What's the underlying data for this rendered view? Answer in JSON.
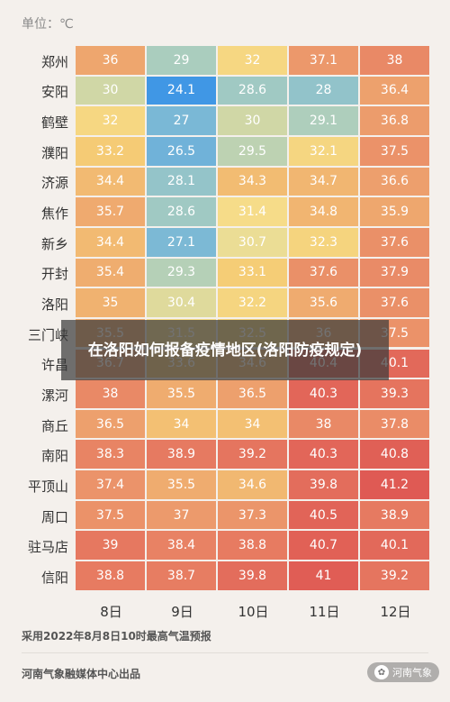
{
  "unit_label": "单位：℃",
  "overlay_title": "在洛阳如何报备疫情地区(洛阳防疫规定)",
  "footer": {
    "source": "采用2022年8月8日10时最高气温预报",
    "org": "河南气象融媒体中心出品",
    "watermark": "河南气象"
  },
  "chart_data": {
    "type": "heatmap",
    "title": "",
    "unit": "单位：℃",
    "x": [
      "8日",
      "9日",
      "10日",
      "11日",
      "12日"
    ],
    "y": [
      "郑州",
      "安阳",
      "鹤壁",
      "濮阳",
      "济源",
      "焦作",
      "新乡",
      "开封",
      "洛阳",
      "三门峡",
      "许昌",
      "漯河",
      "商丘",
      "南阳",
      "平顶山",
      "周口",
      "驻马店",
      "信阳"
    ],
    "values": [
      [
        36,
        29,
        32,
        37.1,
        38
      ],
      [
        30,
        24.1,
        28.6,
        28,
        36.4
      ],
      [
        32,
        27,
        30,
        29.1,
        36.8
      ],
      [
        33.2,
        26.5,
        29.5,
        32.1,
        37.5
      ],
      [
        34.4,
        28.1,
        34.3,
        34.7,
        36.6
      ],
      [
        35.7,
        28.6,
        31.4,
        34.8,
        35.9
      ],
      [
        34.4,
        27.1,
        30.7,
        32.3,
        37.6
      ],
      [
        35.4,
        29.3,
        33.1,
        37.6,
        37.9
      ],
      [
        35,
        30.4,
        32.2,
        35.6,
        37.6
      ],
      [
        35.5,
        31.5,
        32.5,
        36,
        37.5
      ],
      [
        36.7,
        33.6,
        34.6,
        40.4,
        40.1
      ],
      [
        38,
        35.5,
        36.5,
        40.3,
        39.3
      ],
      [
        36.5,
        34,
        34,
        38,
        37.8
      ],
      [
        38.3,
        38.9,
        39.2,
        40.3,
        40.8
      ],
      [
        37.4,
        35.5,
        34.6,
        39.8,
        41.2
      ],
      [
        37.5,
        37,
        37.3,
        40.5,
        38.9
      ],
      [
        39,
        38.4,
        38.8,
        40.7,
        40.1
      ],
      [
        38.8,
        38.7,
        39.8,
        41,
        39.2
      ]
    ]
  }
}
